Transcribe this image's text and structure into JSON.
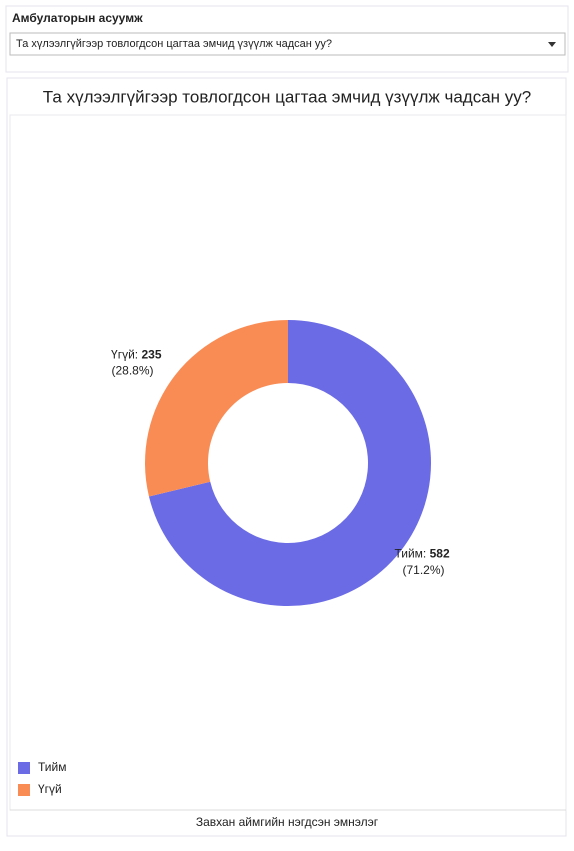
{
  "filter": {
    "label": "Амбулаторын асуумж",
    "selected": "Та хүлээлгүйгээр товлогдсон цагтаа эмчид үзүүлж чадсан уу?"
  },
  "chart_data": {
    "type": "donut",
    "title": "Та хүлээлгүйгээр товлогдсон цагтаа эмчид үзүүлж чадсан уу?",
    "categories": [
      "Тийм",
      "Үгүй"
    ],
    "values": [
      582,
      235
    ],
    "colors": [
      "#6b6be6",
      "#f98c55"
    ],
    "data_label_names": [
      "Тийм:",
      "Үгүй:"
    ],
    "percent_labels": [
      "(71.2%)",
      "(28.8%)"
    ],
    "legend": "bottom-left"
  },
  "footer": "Завхан аймгийн нэгдсэн эмнэлэг"
}
